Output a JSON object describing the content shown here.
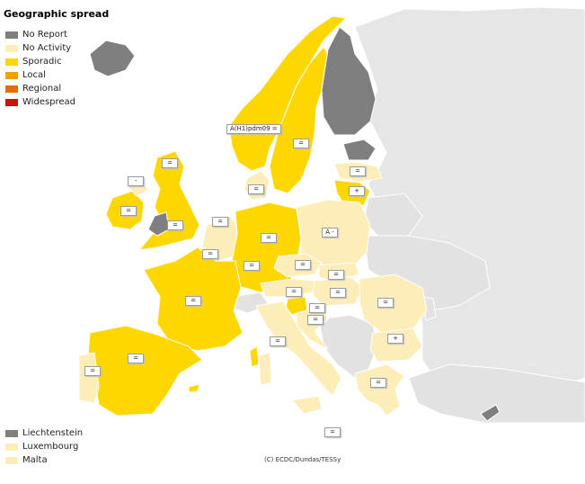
{
  "title": "Geographic spread",
  "legend": [
    {
      "label": "No Report",
      "color": "#7f7f7f"
    },
    {
      "label": "No Activity",
      "color": "#fcedb9"
    },
    {
      "label": "Sporadic",
      "color": "#ffd700"
    },
    {
      "label": "Local",
      "color": "#f2a200"
    },
    {
      "label": "Regional",
      "color": "#e96a00"
    },
    {
      "label": "Widespread",
      "color": "#cc1111"
    }
  ],
  "small_states": [
    {
      "label": "Liechtenstein",
      "color": "#7f7f7f"
    },
    {
      "label": "Luxembourg",
      "color": "#fcedb9"
    },
    {
      "label": "Malta",
      "color": "#fcedb9"
    }
  ],
  "credit": "(C) ECDC/Dundas/TESSy",
  "tags": {
    "norway": "A(H1)pdm09 =",
    "sweden": "=",
    "estonia": "=",
    "latvia": "+",
    "scotland": "=",
    "northern_ireland": "-",
    "ireland": "=",
    "england": "=",
    "denmark": "=",
    "netherlands": "=",
    "belgium": "=",
    "germany": "=",
    "poland": "A -",
    "france": "=",
    "luxembourg": "=",
    "czech": "=",
    "slovakia": "=",
    "austria": "=",
    "hungary": "=",
    "romania": "=",
    "slovenia": "=",
    "croatia": "=",
    "italy": "=",
    "bulgaria": "+",
    "spain": "=",
    "portugal": "=",
    "greece": "=",
    "malta": "="
  }
}
